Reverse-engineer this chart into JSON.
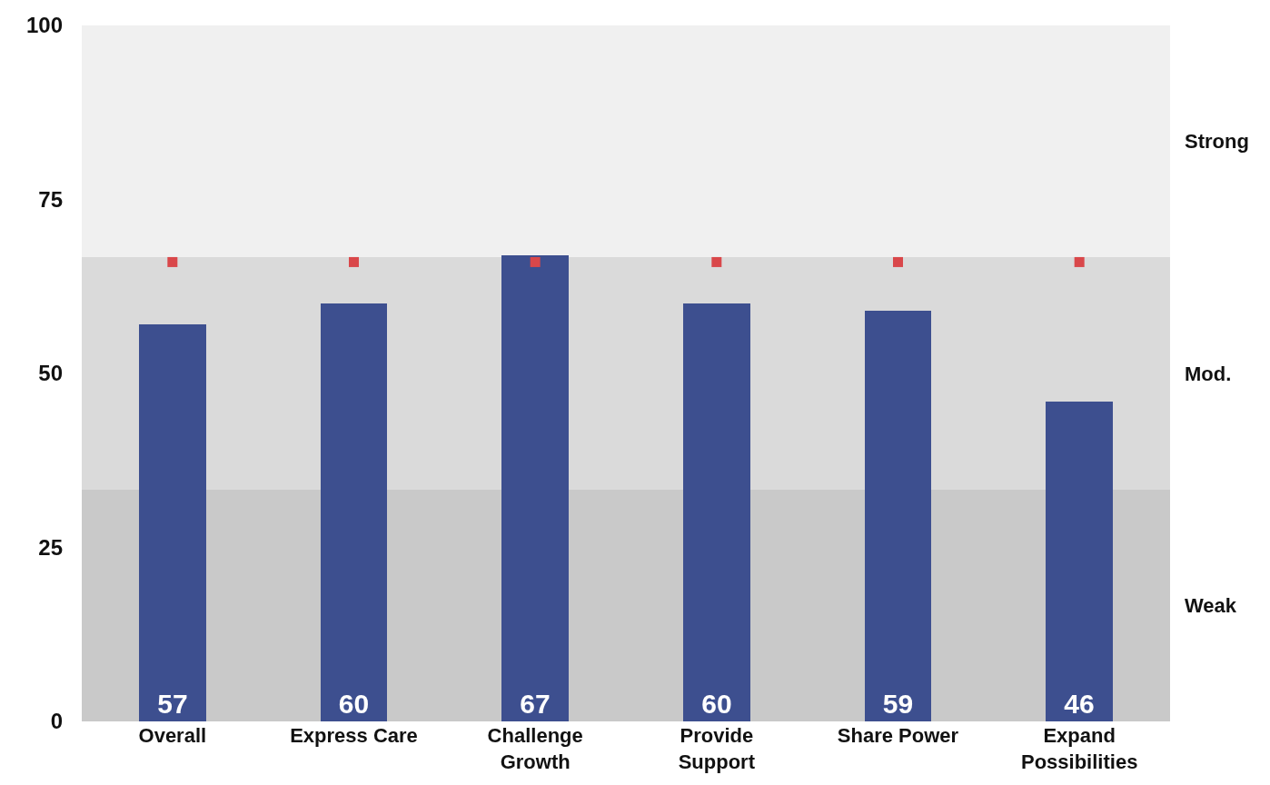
{
  "chart_data": {
    "type": "bar",
    "categories": [
      "Overall",
      "Express Care",
      "Challenge Growth",
      "Provide Support",
      "Share Power",
      "Expand Possibilities"
    ],
    "series": [
      {
        "color": "#3d4f8f",
        "values": [
          57,
          60,
          67,
          60,
          59,
          46
        ],
        "value_labels": [
          "57",
          "60",
          "67",
          "60",
          "59",
          "46"
        ]
      },
      {
        "type": "scatter",
        "color": "#d9474a",
        "values": [
          66,
          66,
          66,
          66,
          66,
          66
        ]
      }
    ],
    "ylim": [
      0,
      100
    ],
    "yticks": [
      0,
      25,
      50,
      75,
      100
    ],
    "grid": false,
    "bands": [
      {
        "axis": "y",
        "from": 0,
        "to": 33.3,
        "label": "Weak",
        "color": "#c9c9c9"
      },
      {
        "axis": "y",
        "from": 33.3,
        "to": 66.7,
        "label": "Mod.",
        "color": "#dadada"
      },
      {
        "axis": "y",
        "from": 66.7,
        "to": 100,
        "label": "Strong",
        "color": "#f0f0f0"
      }
    ]
  }
}
